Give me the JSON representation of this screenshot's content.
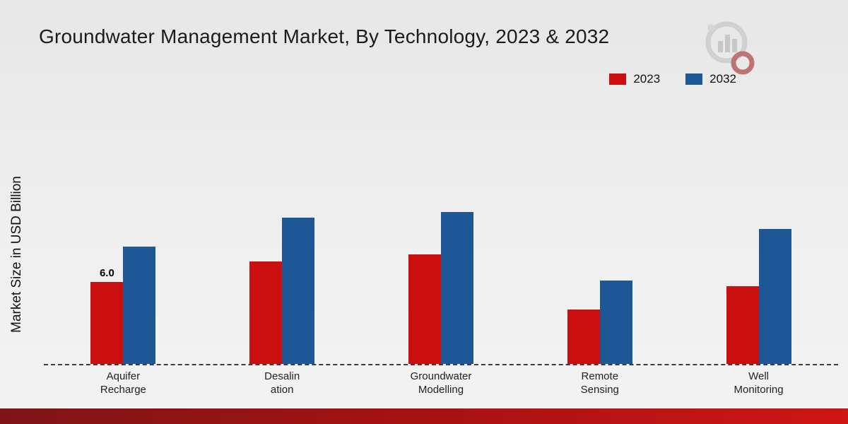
{
  "header": {
    "title": "Groundwater Management Market, By Technology, 2023 & 2032"
  },
  "ylabel": "Market Size in USD Billion",
  "colors": {
    "series_2023": "#cb0e0e",
    "series_2032": "#1d5796",
    "background": "#eeeeee",
    "bottom_strip": "#a31212"
  },
  "icons": {
    "logo": "bar-chart-magnifier-logo"
  },
  "chart_data": {
    "type": "bar",
    "title": "Groundwater Management Market, By Technology, 2023 & 2032",
    "xlabel": "",
    "ylabel": "Market Size in USD Billion",
    "categories": [
      "Aquifer\nRecharge",
      "Desalin\nation",
      "Groundwater\nModelling",
      "Remote\nSensing",
      "Well\nMonitoring"
    ],
    "series": [
      {
        "name": "2023",
        "color": "#cb0e0e",
        "values": [
          6.0,
          7.5,
          8.0,
          4.0,
          5.7
        ]
      },
      {
        "name": "2032",
        "color": "#1d5796",
        "values": [
          8.6,
          10.7,
          11.1,
          6.1,
          9.9
        ]
      }
    ],
    "ylim": [
      0,
      12
    ],
    "grid": false,
    "legend_position": "top-right",
    "baseline_style": "dashed",
    "annotations": [
      {
        "series": 0,
        "category": 0,
        "text": "6.0"
      }
    ]
  }
}
